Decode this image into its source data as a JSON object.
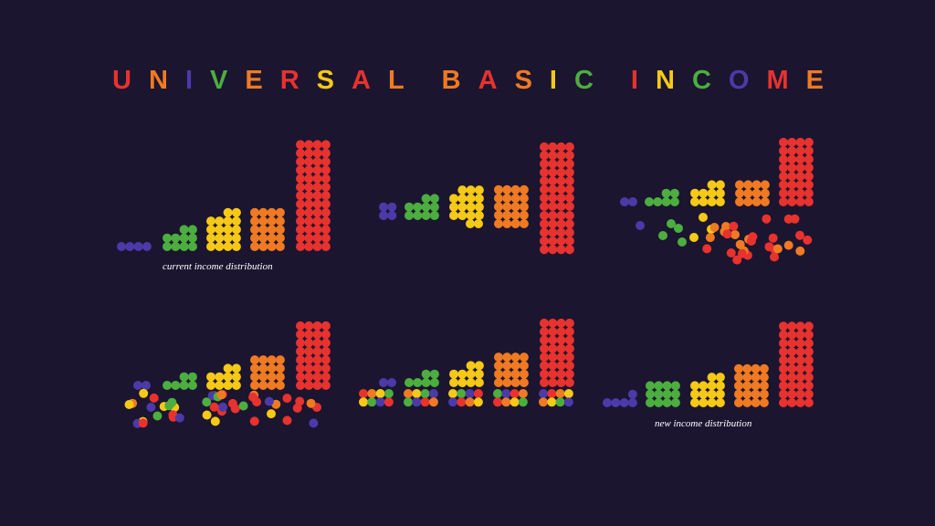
{
  "title": {
    "text": "UNIVERSAL BASIC INCOME",
    "letter_colors": [
      "#e8322e",
      "#f07a22",
      "#4b3aa8",
      "#4cae3f",
      "#f07a22",
      "#e8322e",
      "#f5c916",
      "#e8322e",
      "#f07a22",
      "#f07a22",
      "#e8322e",
      "#f07a22",
      "#f5c916",
      "#4cae3f",
      "#e8322e",
      "#f5c916",
      "#4cae3f",
      "#4b3aa8",
      "#e8322e",
      "#f07a22"
    ]
  },
  "captions": {
    "current": "current income distribution",
    "new": "new income distribution"
  },
  "colors": {
    "background": "#1b1530",
    "purple": "#4b3aa8",
    "green": "#4cae3f",
    "yellow": "#f5c916",
    "orange": "#f07a22",
    "red": "#e8322e"
  }
}
